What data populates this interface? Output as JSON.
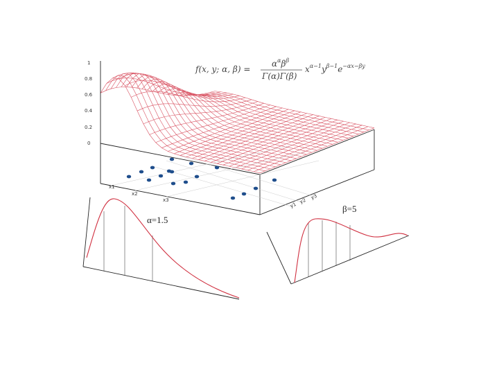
{
  "formula": {
    "lhs": "f(x, y; α, β) =",
    "numerator": [
      {
        "base": "α",
        "sup": "α"
      },
      {
        "base": "β",
        "sup": "β"
      }
    ],
    "denominator": "Γ(α)Γ(β)",
    "factors": [
      {
        "base": "x",
        "sup": "α−1"
      },
      {
        "base": "y",
        "sup": "β−1"
      },
      {
        "base": "e",
        "sup": "−αx−βy"
      }
    ]
  },
  "z_axis": {
    "tick_labels": [
      "1",
      "0.8",
      "0.6",
      "0.4",
      "0.2",
      "0"
    ]
  },
  "x_axis": {
    "labels": [
      "x1",
      "x2",
      "x3"
    ]
  },
  "y_axis": {
    "labels": [
      "y1",
      "y2",
      "y3"
    ]
  },
  "marginals": {
    "alpha_label": "α=1.5",
    "beta_label": "β=5"
  }
}
